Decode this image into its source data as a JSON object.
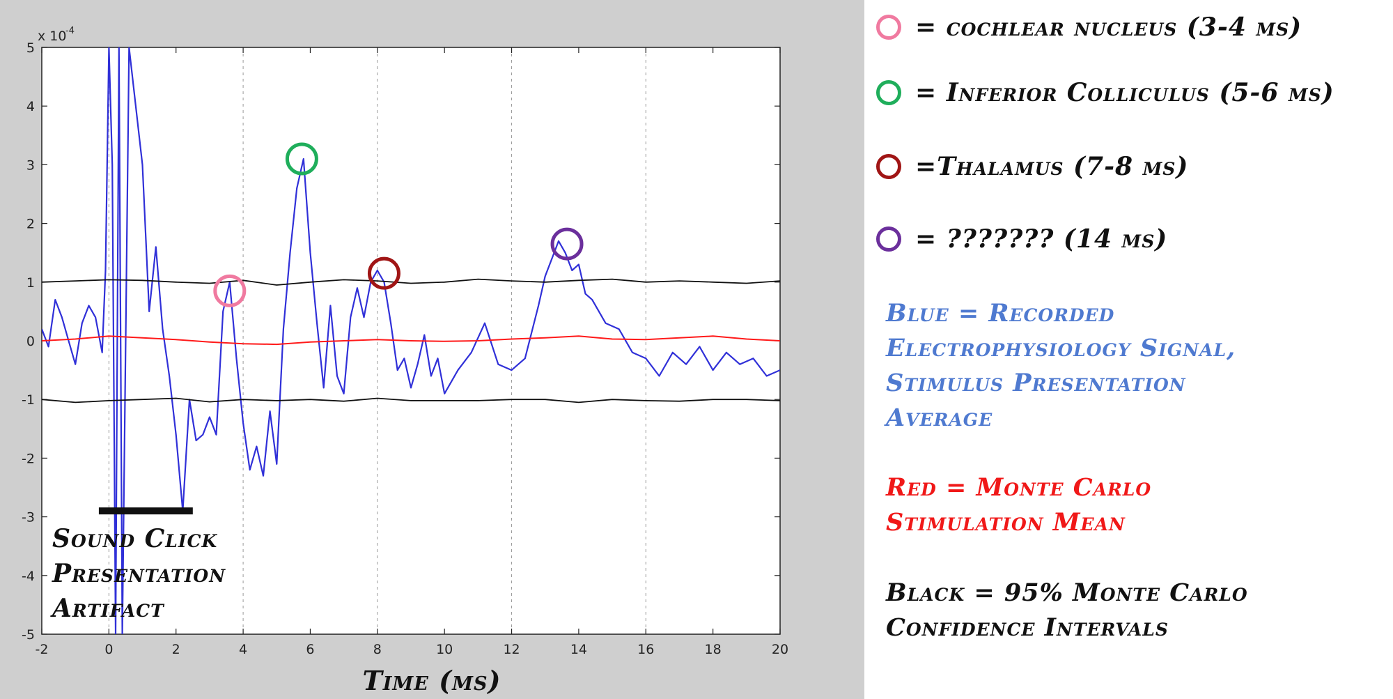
{
  "colors": {
    "blue": "#3030d8",
    "red": "#ff1a1a",
    "black": "#111111",
    "pink": "#f07aa0",
    "green": "#1fae5b",
    "dark_red": "#a01515",
    "purple": "#6b2f9c",
    "key_blue": "#4f7ad0",
    "key_red": "#f01818"
  },
  "chart_data": {
    "type": "line",
    "xlabel": "Time (ms)",
    "ylabel": "",
    "y_exponent_label": "x 10",
    "y_exponent_power": "-4",
    "xlim": [
      -2,
      20
    ],
    "ylim": [
      -5,
      5
    ],
    "x_ticks": [
      "-2",
      "0",
      "2",
      "4",
      "6",
      "8",
      "10",
      "12",
      "14",
      "16",
      "18",
      "20"
    ],
    "y_ticks": [
      "5",
      "4",
      "3",
      "2",
      "1",
      "0",
      "-1",
      "-2",
      "-3",
      "-4",
      "-5"
    ],
    "grid": "vertical dashed",
    "series": [
      {
        "color": "#3030d8",
        "x": [
          -2,
          -1.8,
          -1.6,
          -1.4,
          -1.2,
          -1.0,
          -0.8,
          -0.6,
          -0.4,
          -0.2,
          -0.1,
          0,
          0.1,
          0.2,
          0.3,
          0.4,
          0.6,
          0.8,
          1.0,
          1.2,
          1.4,
          1.6,
          1.8,
          2.0,
          2.2,
          2.4,
          2.6,
          2.8,
          3.0,
          3.2,
          3.4,
          3.6,
          3.8,
          4.0,
          4.2,
          4.4,
          4.6,
          4.8,
          5.0,
          5.2,
          5.4,
          5.6,
          5.8,
          6.0,
          6.2,
          6.4,
          6.6,
          6.8,
          7.0,
          7.2,
          7.4,
          7.6,
          7.8,
          8.0,
          8.2,
          8.4,
          8.6,
          8.8,
          9.0,
          9.2,
          9.4,
          9.6,
          9.8,
          10.0,
          10.4,
          10.8,
          11.2,
          11.6,
          12.0,
          12.4,
          12.8,
          13.0,
          13.2,
          13.4,
          13.6,
          13.8,
          14.0,
          14.2,
          14.4,
          14.8,
          15.2,
          15.6,
          16.0,
          16.4,
          16.8,
          17.2,
          17.6,
          18.0,
          18.4,
          18.8,
          19.2,
          19.6,
          20.0
        ],
        "y": [
          0.2,
          -0.1,
          0.7,
          0.4,
          0.0,
          -0.4,
          0.3,
          0.6,
          0.4,
          -0.2,
          1.2,
          5.0,
          3.0,
          -5.0,
          5.0,
          -5.0,
          5.0,
          4.0,
          3.0,
          0.5,
          1.6,
          0.2,
          -0.6,
          -1.6,
          -2.9,
          -1.0,
          -1.7,
          -1.6,
          -1.3,
          -1.6,
          0.5,
          1.0,
          -0.3,
          -1.4,
          -2.2,
          -1.8,
          -2.3,
          -1.2,
          -2.1,
          0.2,
          1.5,
          2.6,
          3.1,
          1.5,
          0.3,
          -0.8,
          0.6,
          -0.6,
          -0.9,
          0.4,
          0.9,
          0.4,
          1.0,
          1.2,
          1.0,
          0.3,
          -0.5,
          -0.3,
          -0.8,
          -0.4,
          0.1,
          -0.6,
          -0.3,
          -0.9,
          -0.5,
          -0.2,
          0.3,
          -0.4,
          -0.5,
          -0.3,
          0.6,
          1.1,
          1.4,
          1.7,
          1.5,
          1.2,
          1.3,
          0.8,
          0.7,
          0.3,
          0.2,
          -0.2,
          -0.3,
          -0.6,
          -0.2,
          -0.4,
          -0.1,
          -0.5,
          -0.2,
          -0.4,
          -0.3,
          -0.6,
          -0.5
        ]
      },
      {
        "color": "#ff1a1a",
        "x": [
          -2,
          -1,
          0,
          1,
          2,
          3,
          4,
          5,
          6,
          7,
          8,
          9,
          10,
          11,
          12,
          13,
          14,
          15,
          16,
          17,
          18,
          19,
          20
        ],
        "y": [
          0.0,
          0.03,
          0.08,
          0.05,
          0.02,
          -0.02,
          -0.05,
          -0.06,
          -0.02,
          0.0,
          0.02,
          0.0,
          -0.01,
          0.0,
          0.03,
          0.05,
          0.08,
          0.03,
          0.02,
          0.05,
          0.08,
          0.03,
          0.0
        ]
      },
      {
        "color": "#111111",
        "x": [
          -2,
          -1,
          0,
          1,
          2,
          3,
          4,
          5,
          6,
          7,
          8,
          9,
          10,
          11,
          12,
          13,
          14,
          15,
          16,
          17,
          18,
          19,
          20
        ],
        "y": [
          1.0,
          1.02,
          1.04,
          1.03,
          1.0,
          0.98,
          1.03,
          0.95,
          1.0,
          1.04,
          1.02,
          0.98,
          1.0,
          1.05,
          1.02,
          1.0,
          1.03,
          1.05,
          1.0,
          1.02,
          1.0,
          0.98,
          1.02
        ]
      },
      {
        "color": "#111111",
        "x": [
          -2,
          -1,
          0,
          1,
          2,
          3,
          4,
          5,
          6,
          7,
          8,
          9,
          10,
          11,
          12,
          13,
          14,
          15,
          16,
          17,
          18,
          19,
          20
        ],
        "y": [
          -1.0,
          -1.05,
          -1.02,
          -1.0,
          -0.98,
          -1.04,
          -1.0,
          -1.02,
          -1.0,
          -1.03,
          -0.98,
          -1.02,
          -1.02,
          -1.02,
          -1.0,
          -1.0,
          -1.05,
          -1.0,
          -1.02,
          -1.03,
          -1.0,
          -1.0,
          -1.02
        ]
      }
    ],
    "markers": [
      {
        "x": 3.6,
        "y": 0.85,
        "color": "#f07aa0"
      },
      {
        "x": 5.75,
        "y": 3.1,
        "color": "#1fae5b"
      },
      {
        "x": 8.2,
        "y": 1.15,
        "color": "#a01515"
      },
      {
        "x": 13.65,
        "y": 1.65,
        "color": "#6b2f9c"
      }
    ],
    "artifact_bar": {
      "x0": -0.3,
      "x1": 2.5,
      "y": -2.9
    },
    "annotation_lines": [
      "Sound Click",
      "Presentation",
      "Artifact"
    ]
  },
  "legend": [
    {
      "color": "#f07aa0",
      "text": "= cochlear nucleus (3-4 ms)"
    },
    {
      "color": "#1fae5b",
      "text": "= Inferior Colliculus (5-6 ms)"
    },
    {
      "color": "#a01515",
      "text": "=Thalamus (7-8 ms)"
    },
    {
      "color": "#6b2f9c",
      "text": "= ??????? (14 ms)"
    }
  ],
  "key_blue_lines": [
    "Blue = Recorded",
    "Electrophysiology Signal,",
    "Stimulus Presentation",
    "Average"
  ],
  "key_red_lines": [
    "Red = Monte Carlo",
    "Stimulation Mean"
  ],
  "key_black_lines": [
    "Black = 95% Monte Carlo",
    "Confidence Intervals"
  ]
}
